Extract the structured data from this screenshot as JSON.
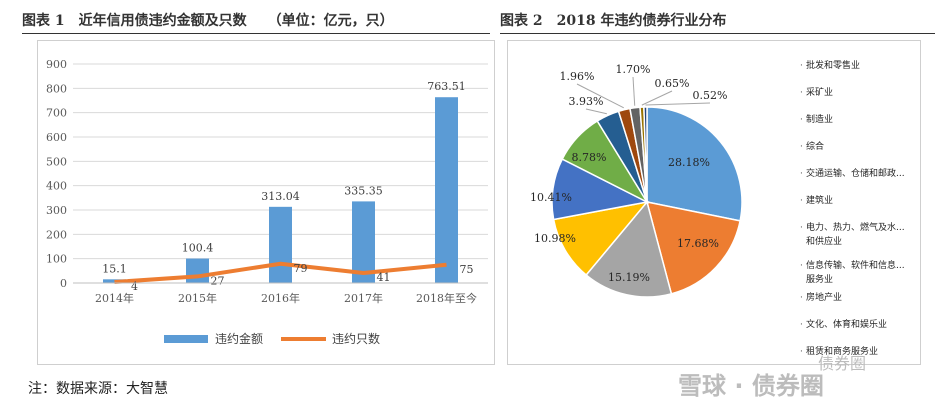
{
  "left_caption": "图表 1　近年信用债违约金额及只数　　（单位：亿元，只）",
  "right_caption": "图表 2　2018 年违约债券行业分布",
  "footnote": "注：数据来源：大智慧",
  "watermark": {
    "top": "债券圈",
    "bottom": "雪球 · 债券圈"
  },
  "colors": {
    "bar": "#5b9bd5",
    "line": "#ed7d31"
  },
  "chart_data": [
    {
      "type": "bar",
      "categories": [
        "2014年",
        "2015年",
        "2016年",
        "2017年",
        "2018年至今"
      ],
      "series": [
        {
          "name": "违约金额",
          "type": "bar",
          "values": [
            15.1,
            100.4,
            313.04,
            335.35,
            763.51
          ],
          "labels": [
            "15.1",
            "100.4",
            "313.04",
            "335.35",
            "763.51"
          ],
          "color": "#5b9bd5"
        },
        {
          "name": "违约只数",
          "type": "line",
          "values": [
            4,
            27,
            79,
            41,
            75
          ],
          "labels": [
            "4",
            "27",
            "79",
            "41",
            "75"
          ],
          "color": "#ed7d31"
        }
      ],
      "ylim": [
        0,
        900
      ],
      "yticks": [
        "0",
        "100",
        "200",
        "300",
        "400",
        "500",
        "600",
        "700",
        "800",
        "900"
      ],
      "grid": true,
      "legend": "bottom"
    },
    {
      "type": "pie",
      "labels": [
        "批发和零售业",
        "采矿业",
        "制造业",
        "综合",
        "交通运输、仓储和邮政业",
        "建筑业",
        "电力、热力、燃气及水生产和供应业",
        "信息传输、软件和信息技术服务业",
        "房地产业",
        "文化、体育和娱乐业",
        "租赁和商务服务业"
      ],
      "legend_lines": [
        [
          "批发和零售业"
        ],
        [
          "采矿业"
        ],
        [
          "制造业"
        ],
        [
          "综合"
        ],
        [
          "交通运输、仓储和邮政..."
        ],
        [
          "建筑业"
        ],
        [
          "电力、热力、燃气及水...",
          "和供应业"
        ],
        [
          "信息传输、软件和信息...",
          "服务业"
        ],
        [
          "房地产业"
        ],
        [
          "文化、体育和娱乐业"
        ],
        [
          "租赁和商务服务业"
        ]
      ],
      "slices": [
        {
          "value": 28.18,
          "label": "28.18%",
          "color": "#5b9bd5"
        },
        {
          "value": 17.68,
          "label": "17.68%",
          "color": "#ed7d31"
        },
        {
          "value": 15.19,
          "label": "15.19%",
          "color": "#a5a5a5"
        },
        {
          "value": 10.98,
          "label": "10.98%",
          "color": "#ffc000"
        },
        {
          "value": 10.41,
          "label": "10.41%",
          "color": "#4472c4"
        },
        {
          "value": 8.78,
          "label": "8.78%",
          "color": "#70ad47"
        },
        {
          "value": 3.93,
          "label": "3.93%",
          "color": "#255e91"
        },
        {
          "value": 1.96,
          "label": "1.96%",
          "color": "#9e480e"
        },
        {
          "value": 1.7,
          "label": "1.70%",
          "color": "#636363"
        },
        {
          "value": 0.65,
          "label": "0.65%",
          "color": "#997300"
        },
        {
          "value": 0.52,
          "label": "0.52%",
          "color": "#264478"
        }
      ],
      "legend": "right"
    }
  ]
}
